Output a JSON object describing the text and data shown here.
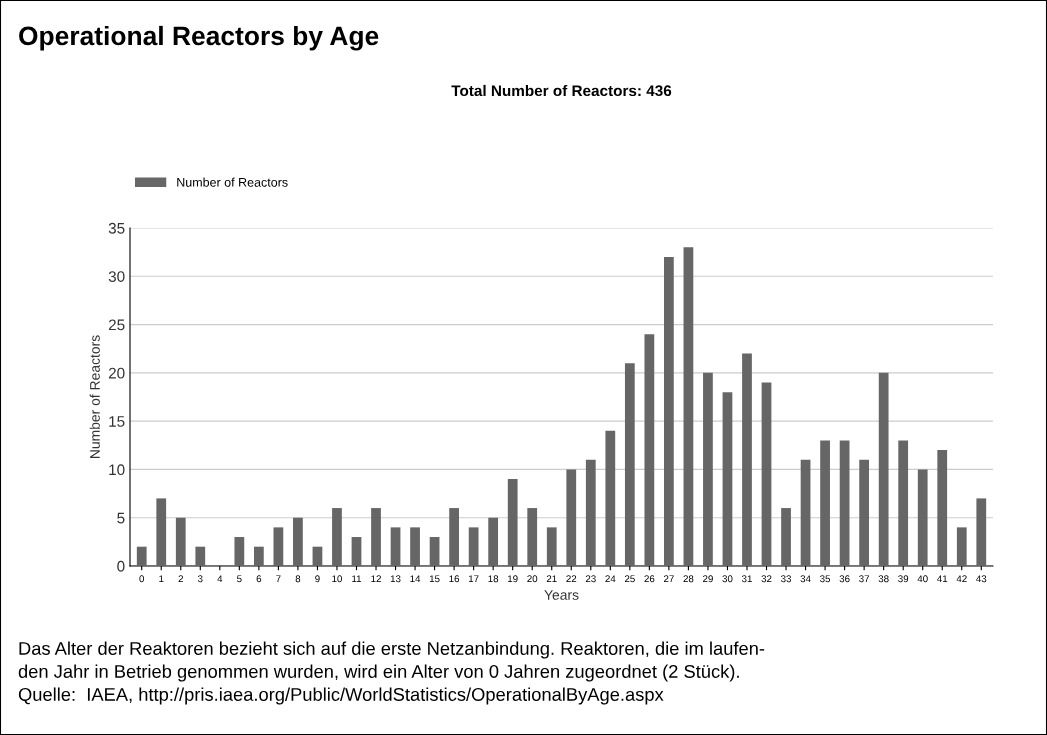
{
  "chart_data": {
    "type": "bar",
    "title": "Operational Reactors by Age",
    "subtitle": "Total Number of Reactors: 436",
    "xlabel": "Years",
    "ylabel": "Number of Reactors",
    "categories": [
      "0",
      "1",
      "2",
      "3",
      "4",
      "5",
      "6",
      "7",
      "8",
      "9",
      "10",
      "11",
      "12",
      "13",
      "14",
      "15",
      "16",
      "17",
      "18",
      "19",
      "20",
      "21",
      "22",
      "23",
      "24",
      "25",
      "26",
      "27",
      "28",
      "29",
      "30",
      "31",
      "32",
      "33",
      "34",
      "35",
      "36",
      "37",
      "38",
      "39",
      "40",
      "41",
      "42",
      "43"
    ],
    "series": [
      {
        "name": "Number of Reactors",
        "color": "#666666",
        "values": [
          2,
          7,
          5,
          2,
          0,
          3,
          2,
          4,
          5,
          2,
          6,
          3,
          6,
          4,
          4,
          3,
          6,
          4,
          5,
          9,
          6,
          4,
          10,
          11,
          14,
          21,
          24,
          32,
          33,
          20,
          18,
          22,
          19,
          6,
          11,
          13,
          13,
          11,
          20,
          13,
          10,
          12,
          4,
          7
        ]
      }
    ],
    "ylim": [
      0,
      35
    ],
    "yticks": [
      0,
      5,
      10,
      15,
      20,
      25,
      30,
      35
    ],
    "grid": "y",
    "legend": "top left",
    "annotations": [
      "Das Alter der Reaktoren bezieht sich auf die erste Netzanbindung. Reaktoren, die im laufen-",
      "den Jahr in Betrieb genommen wurden, wird ein Alter von 0 Jahren zugeordnet (2 Stück).",
      "Quelle:  IAEA, http://pris.iaea.org/Public/WorldStatistics/OperationalByAge.aspx"
    ]
  }
}
